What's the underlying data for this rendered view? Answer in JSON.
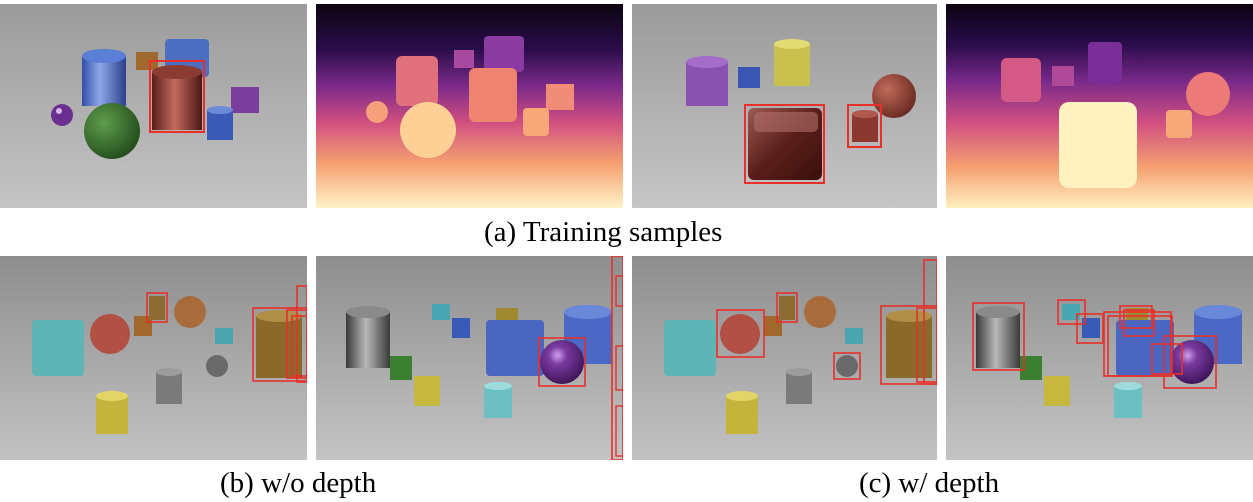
{
  "figure": {
    "row1_caption": "(a) Training samples",
    "row2_left_caption": "(b) w/o depth",
    "row2_right_caption": "(c) w/ depth"
  },
  "panels": [
    {
      "id": "train-rgb-1",
      "kind": "rendered scene"
    },
    {
      "id": "train-depth-1",
      "kind": "depth map"
    },
    {
      "id": "train-rgb-2",
      "kind": "rendered scene"
    },
    {
      "id": "train-depth-2",
      "kind": "depth map"
    },
    {
      "id": "wo-depth-1",
      "kind": "rendered scene"
    },
    {
      "id": "wo-depth-2",
      "kind": "rendered scene"
    },
    {
      "id": "w-depth-1",
      "kind": "rendered scene"
    },
    {
      "id": "w-depth-2",
      "kind": "rendered scene"
    }
  ],
  "colors": {
    "box": "#e8302a",
    "depth_far": "#0b0410",
    "depth_mid": "#c8408c",
    "depth_near": "#fff7d8"
  }
}
